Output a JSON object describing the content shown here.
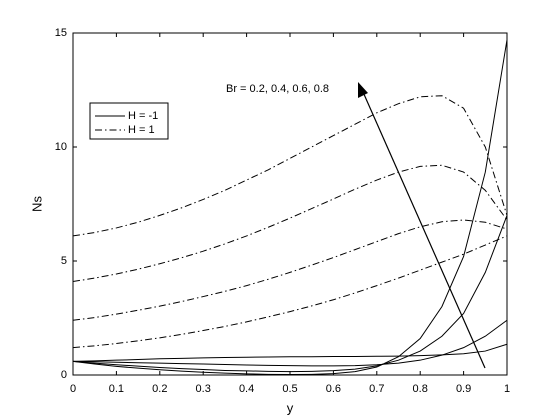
{
  "chart_data": {
    "type": "line",
    "xlabel": "y",
    "ylabel": "Ns",
    "annotation": "Br = 0.2, 0.4, 0.6, 0.8",
    "x": [
      0,
      0.05,
      0.1,
      0.15,
      0.2,
      0.25,
      0.3,
      0.35,
      0.4,
      0.45,
      0.5,
      0.55,
      0.6,
      0.65,
      0.7,
      0.75,
      0.8,
      0.85,
      0.9,
      0.95,
      1
    ],
    "xlim": [
      0,
      1
    ],
    "xticks": [
      0,
      0.1,
      0.2,
      0.3,
      0.4,
      0.5,
      0.6,
      0.7,
      0.8,
      0.9,
      1
    ],
    "ylim": [
      0,
      15
    ],
    "yticks": [
      0,
      5,
      10,
      15
    ],
    "legend": "upper left",
    "series": [
      {
        "name": "H = -1",
        "color": "#000000",
        "line_style": "solid",
        "values": [
          0.6,
          0.62,
          0.65,
          0.68,
          0.71,
          0.73,
          0.75,
          0.77,
          0.78,
          0.79,
          0.8,
          0.8,
          0.81,
          0.81,
          0.82,
          0.83,
          0.85,
          0.88,
          0.93,
          1.05,
          1.35
        ]
      },
      {
        "color": "#000000",
        "line_style": "solid",
        "values": [
          0.6,
          0.58,
          0.56,
          0.54,
          0.52,
          0.5,
          0.48,
          0.46,
          0.44,
          0.42,
          0.41,
          0.4,
          0.4,
          0.41,
          0.45,
          0.52,
          0.65,
          0.87,
          1.2,
          1.7,
          2.4
        ]
      },
      {
        "color": "#000000",
        "line_style": "solid",
        "values": [
          0.6,
          0.52,
          0.45,
          0.39,
          0.33,
          0.28,
          0.24,
          0.2,
          0.18,
          0.16,
          0.15,
          0.16,
          0.19,
          0.26,
          0.4,
          0.65,
          1.05,
          1.7,
          2.7,
          4.5,
          7.0
        ]
      },
      {
        "color": "#000000",
        "line_style": "solid",
        "values": [
          0.6,
          0.48,
          0.38,
          0.3,
          0.23,
          0.17,
          0.12,
          0.08,
          0.05,
          0.03,
          0.02,
          0.03,
          0.06,
          0.15,
          0.35,
          0.8,
          1.6,
          3.0,
          5.2,
          8.9,
          14.7
        ]
      },
      {
        "name": "H = 1",
        "color": "#000000",
        "line_style": "dashdot",
        "values": [
          1.2,
          1.28,
          1.38,
          1.5,
          1.63,
          1.78,
          1.95,
          2.13,
          2.33,
          2.55,
          2.78,
          3.03,
          3.3,
          3.6,
          3.92,
          4.25,
          4.6,
          4.95,
          5.3,
          5.7,
          6.1
        ]
      },
      {
        "color": "#000000",
        "line_style": "dashdot",
        "values": [
          2.4,
          2.52,
          2.67,
          2.84,
          3.02,
          3.22,
          3.44,
          3.67,
          3.92,
          4.2,
          4.5,
          4.82,
          5.15,
          5.5,
          5.85,
          6.2,
          6.5,
          6.72,
          6.8,
          6.7,
          6.4
        ]
      },
      {
        "color": "#000000",
        "line_style": "dashdot",
        "values": [
          4.1,
          4.25,
          4.43,
          4.64,
          4.88,
          5.14,
          5.43,
          5.75,
          6.1,
          6.48,
          6.88,
          7.3,
          7.72,
          8.15,
          8.55,
          8.9,
          9.15,
          9.2,
          8.9,
          8.1,
          6.8
        ]
      },
      {
        "color": "#000000",
        "line_style": "dashdot",
        "values": [
          6.1,
          6.25,
          6.45,
          6.7,
          7.0,
          7.33,
          7.7,
          8.1,
          8.55,
          9.0,
          9.5,
          10.0,
          10.5,
          11.0,
          11.5,
          11.9,
          12.2,
          12.25,
          11.7,
          10.0,
          7.0
        ]
      }
    ]
  }
}
